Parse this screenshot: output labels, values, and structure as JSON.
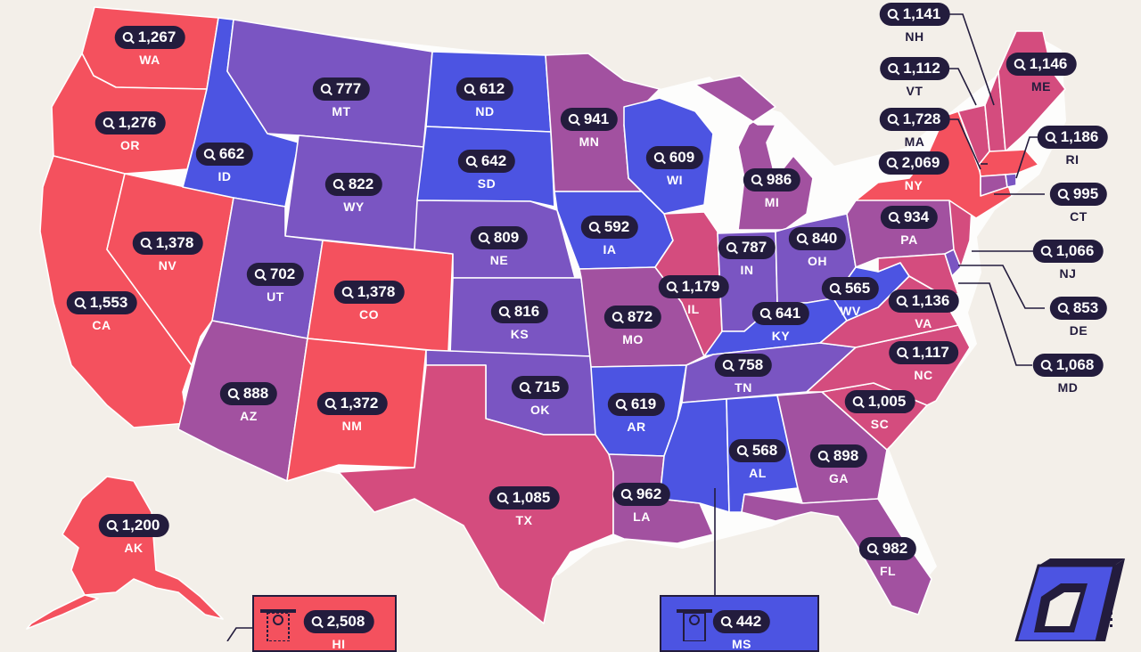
{
  "colors": {
    "bg": "#f3efe9",
    "red": "#f4515e",
    "pink": "#d44c7e",
    "magenta": "#a251a0",
    "violet": "#7a55c2",
    "blue": "#4c54e2",
    "pill": "#231c3d"
  },
  "legend_icon": "magnifier-icon",
  "states": [
    {
      "abbr": "WA",
      "value": "1,267"
    },
    {
      "abbr": "OR",
      "value": "1,276"
    },
    {
      "abbr": "CA",
      "value": "1,553"
    },
    {
      "abbr": "NV",
      "value": "1,378"
    },
    {
      "abbr": "ID",
      "value": "662"
    },
    {
      "abbr": "MT",
      "value": "777"
    },
    {
      "abbr": "WY",
      "value": "822"
    },
    {
      "abbr": "UT",
      "value": "702"
    },
    {
      "abbr": "AZ",
      "value": "888"
    },
    {
      "abbr": "CO",
      "value": "1,378"
    },
    {
      "abbr": "NM",
      "value": "1,372"
    },
    {
      "abbr": "ND",
      "value": "612"
    },
    {
      "abbr": "SD",
      "value": "642"
    },
    {
      "abbr": "NE",
      "value": "809"
    },
    {
      "abbr": "KS",
      "value": "816"
    },
    {
      "abbr": "OK",
      "value": "715"
    },
    {
      "abbr": "TX",
      "value": "1,085"
    },
    {
      "abbr": "MN",
      "value": "941"
    },
    {
      "abbr": "IA",
      "value": "592"
    },
    {
      "abbr": "MO",
      "value": "872"
    },
    {
      "abbr": "AR",
      "value": "619"
    },
    {
      "abbr": "LA",
      "value": "962"
    },
    {
      "abbr": "WI",
      "value": "609"
    },
    {
      "abbr": "IL",
      "value": "1,179"
    },
    {
      "abbr": "MI",
      "value": "986"
    },
    {
      "abbr": "IN",
      "value": "787"
    },
    {
      "abbr": "OH",
      "value": "840"
    },
    {
      "abbr": "KY",
      "value": "641"
    },
    {
      "abbr": "TN",
      "value": "758"
    },
    {
      "abbr": "AL",
      "value": "568"
    },
    {
      "abbr": "GA",
      "value": "898"
    },
    {
      "abbr": "FL",
      "value": "982"
    },
    {
      "abbr": "SC",
      "value": "1,005"
    },
    {
      "abbr": "NC",
      "value": "1,117"
    },
    {
      "abbr": "VA",
      "value": "1,136"
    },
    {
      "abbr": "WV",
      "value": "565"
    },
    {
      "abbr": "PA",
      "value": "934"
    },
    {
      "abbr": "NY",
      "value": "2,069"
    },
    {
      "abbr": "ME",
      "value": "1,146"
    },
    {
      "abbr": "AK",
      "value": "1,200"
    },
    {
      "abbr": "HI",
      "value": "2,508"
    },
    {
      "abbr": "MS",
      "value": "442"
    },
    {
      "abbr": "NH",
      "value": "1,141"
    },
    {
      "abbr": "VT",
      "value": "1,112"
    },
    {
      "abbr": "MA",
      "value": "1,728"
    },
    {
      "abbr": "RI",
      "value": "1,186"
    },
    {
      "abbr": "CT",
      "value": "995"
    },
    {
      "abbr": "NJ",
      "value": "1,066"
    },
    {
      "abbr": "DE",
      "value": "853"
    },
    {
      "abbr": "MD",
      "value": "1,068"
    }
  ]
}
